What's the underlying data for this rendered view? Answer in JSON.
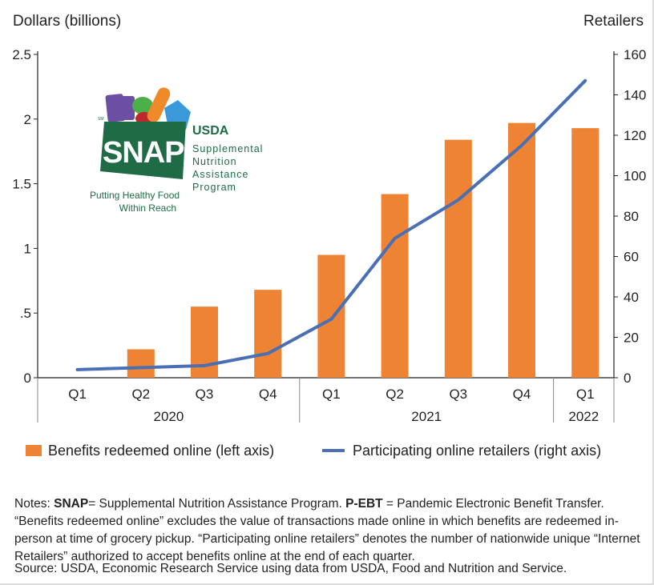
{
  "chart_data": {
    "type": "bar+line",
    "left_axis_label": "Dollars (billions)",
    "right_axis_label": "Retailers",
    "left_ticks": [
      "0",
      ".5",
      "1",
      "1.5",
      "2",
      "2.5"
    ],
    "left_tick_values": [
      0,
      0.5,
      1,
      1.5,
      2,
      2.5
    ],
    "right_ticks": [
      "0",
      "20",
      "40",
      "60",
      "80",
      "100",
      "120",
      "140",
      "160"
    ],
    "right_tick_values": [
      0,
      20,
      40,
      60,
      80,
      100,
      120,
      140,
      160
    ],
    "ylim_left": [
      0,
      2.5
    ],
    "ylim_right": [
      0,
      160
    ],
    "categories": [
      "Q1",
      "Q2",
      "Q3",
      "Q4",
      "Q1",
      "Q2",
      "Q3",
      "Q4",
      "Q1"
    ],
    "years": [
      {
        "label": "2020",
        "quarters": 4
      },
      {
        "label": "2021",
        "quarters": 4
      },
      {
        "label": "2022",
        "quarters": 1
      }
    ],
    "series": [
      {
        "name": "Benefits redeemed online (left axis)",
        "type": "bar",
        "axis": "left",
        "color": "#ee8433",
        "values": [
          0,
          0.22,
          0.55,
          0.68,
          0.95,
          1.42,
          1.84,
          1.97,
          1.93
        ]
      },
      {
        "name": "Participating online retailers (right axis)",
        "type": "line",
        "axis": "right",
        "color": "#4a6fb5",
        "values": [
          4,
          5,
          6,
          12,
          29,
          69,
          88,
          115,
          147
        ]
      }
    ],
    "grid": false,
    "legend_placement": "bottom"
  },
  "logo": {
    "brand": "SNAP",
    "agency": "USDA",
    "name_lines": [
      "Supplemental",
      "Nutrition",
      "Assistance",
      "Program"
    ],
    "tagline_lines": [
      "Putting Healthy Food",
      "Within Reach"
    ],
    "mark": "SM"
  },
  "notes": {
    "prefix": "Notes: ",
    "snap_term": "SNAP",
    "snap_def": "= Supplemental Nutrition Assistance Program. ",
    "pebt_term": "P-EBT",
    "pebt_def": " = Pandemic Electronic Benefit Transfer. “Benefits redeemed online” excludes the value of transactions made online in which benefits are redeemed in-person at time of grocery pickup. “Participating online retailers” denotes the number of nationwide unique “Internet Retailers” authorized to accept benefits online at the end of each quarter.",
    "source": "Source: USDA, Economic Research Service using data from USDA, Food and Nutrition and Service."
  }
}
